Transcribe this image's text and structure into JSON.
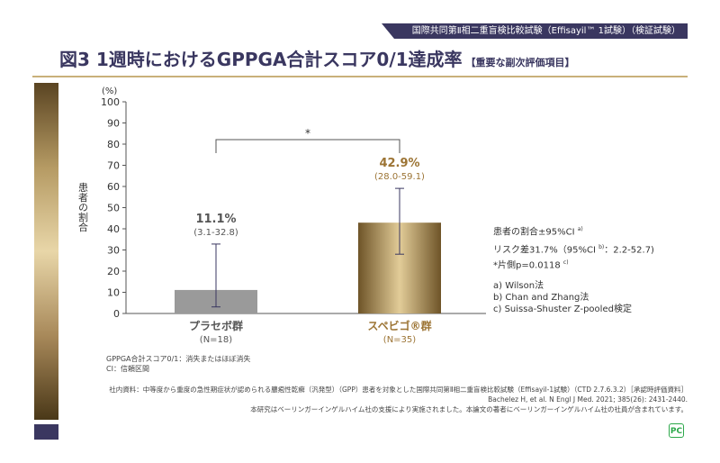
{
  "header": {
    "banner": "国際共同第Ⅱ相二重盲検比較試験（Effisayil™ 1試験）（検証試験）",
    "title": "図3 1週時におけるGPPGA合計スコア0/1達成率",
    "subtitle": "【重要な副次評価項目】"
  },
  "chart_data": {
    "type": "bar",
    "ylabel": "患者の割合",
    "yunit": "(%)",
    "ylim": [
      0,
      100
    ],
    "yticks": [
      0,
      10,
      20,
      30,
      40,
      50,
      60,
      70,
      80,
      90,
      100
    ],
    "categories": [
      {
        "name": "プラセボ群",
        "n": "(N=18)"
      },
      {
        "name": "スペビゴ®群",
        "n": "(N=35)"
      }
    ],
    "values": [
      11.1,
      42.9
    ],
    "ci": [
      [
        3.1,
        32.8
      ],
      [
        28.0,
        59.1
      ]
    ],
    "value_labels": [
      "11.1%",
      "42.9%"
    ],
    "ci_labels": [
      "(3.1-32.8)",
      "(28.0-59.1)"
    ],
    "colors": [
      "#9a9a9a",
      "#a8844a"
    ],
    "significance": "*"
  },
  "notes": {
    "line1": "患者の割合±95%CI",
    "sup1": "a)",
    "line2": "リスク差31.7%（95%CI",
    "sup2": "b)",
    "line2b": "：2.2-52.7)",
    "line3": "*片側p=0.0118",
    "sup3": "c)",
    "a": "a) Wilson法",
    "b": "b) Chan and Zhang法",
    "c": "c) Suissa-Shuster Z-pooled検定"
  },
  "footnotes": {
    "f1": "GPPGA合計スコア0/1：消失またはほぼ消失",
    "f2": "CI：信頼区間"
  },
  "source": {
    "s1": "社内資料：中等度から重度の急性期症状が認められる膿疱性乾癬（汎発型）（GPP）患者を対象とした国際共同第Ⅱ相二重盲検比較試験（Effisayil-1試験）（CTD 2.7.6.3.2）［承認時評価資料］",
    "s2": "Bachelez H, et al. N Engl J Med. 2021; 385(26): 2431-2440.",
    "s3": "本研究はベーリンガーインゲルハイム社の支援により実施されました。本論文の著者にベーリンガーインゲルハイム社の社員が含まれています。"
  },
  "badge": "PC"
}
